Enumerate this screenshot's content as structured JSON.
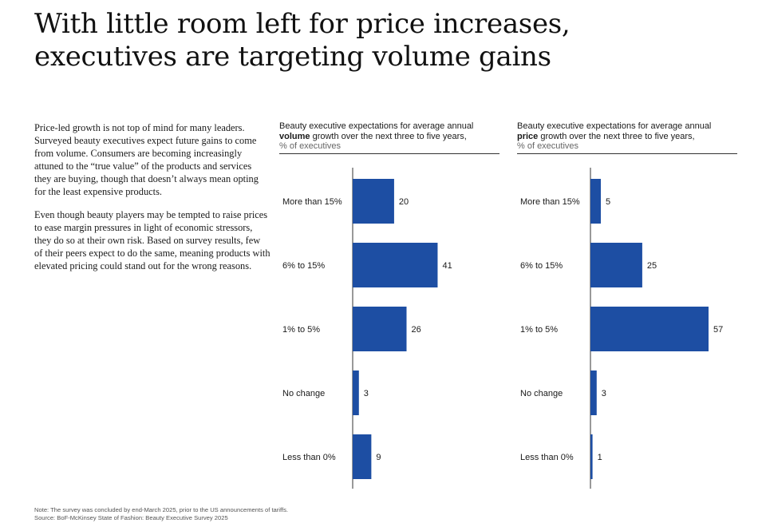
{
  "title": {
    "line1": "With little room left for price increases,",
    "line2": "executives are targeting volume gains"
  },
  "body": {
    "p1": "Price-led growth is not top of mind for many leaders. Surveyed beauty executives expect future gains to come from volume. Consumers are becoming increasingly attuned to the “true value” of the products and services they are buying, though that doesn’t always mean opting for the least expensive products.",
    "p2": "Even though beauty players may be tempted to raise prices to ease margin pressures in light of economic stressors, they do so at their own risk. Based on survey results, few of their peers expect to do the same, meaning products with elevated pricing could stand out for the wrong reasons."
  },
  "footer": {
    "note": "Note: The survey was concluded by end-March 2025, prior to the US announcements of tariffs.",
    "source": "Source: BoF-McKinsey State of Fashion: Beauty Executive Survey 2025"
  },
  "colors": {
    "bar": "#1d4ea3",
    "axis": "#333333"
  },
  "chart_data": [
    {
      "type": "bar",
      "orientation": "horizontal",
      "title_pre": "Beauty executive expectations for average annual",
      "title_bold": "volume",
      "title_post": "growth over the next three to five years,",
      "unit": "% of executives",
      "categories": [
        "More than 15%",
        "6% to 15%",
        "1% to 5%",
        "No change",
        "Less than 0%"
      ],
      "values": [
        20,
        41,
        26,
        3,
        9
      ],
      "xlim": [
        0,
        57
      ]
    },
    {
      "type": "bar",
      "orientation": "horizontal",
      "title_pre": "Beauty executive expectations for average annual",
      "title_bold": "price",
      "title_post": "growth over the next three to five years,",
      "unit": "% of executives",
      "categories": [
        "More than 15%",
        "6% to 15%",
        "1% to 5%",
        "No change",
        "Less than 0%"
      ],
      "values": [
        5,
        25,
        57,
        3,
        1
      ],
      "xlim": [
        0,
        57
      ]
    }
  ]
}
